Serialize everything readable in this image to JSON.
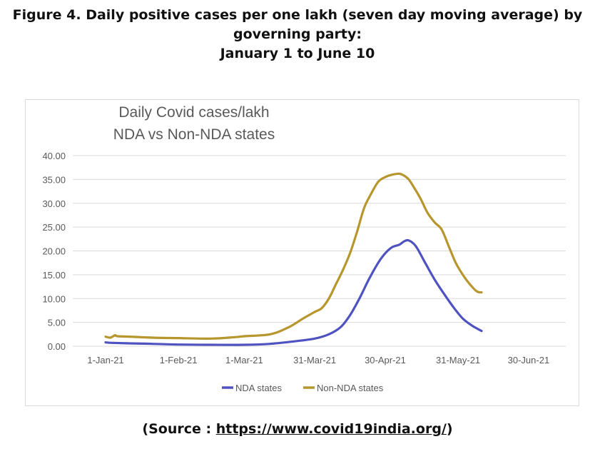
{
  "figure": {
    "title_lines": [
      "Figure 4.  Daily positive cases per one lakh (seven day moving average) by",
      "governing party:",
      "January 1 to June 10"
    ],
    "source_prefix": "(Source : ",
    "source_link": "https://www.covid19india.org/",
    "source_suffix": ")"
  },
  "chart_data": {
    "type": "line",
    "title": "Daily Covid cases/lakh",
    "subtitle": "NDA vs Non-NDA states",
    "xlabel": "",
    "ylabel": "",
    "ylim": [
      0,
      40
    ],
    "yticks": [
      0,
      5,
      10,
      15,
      20,
      25,
      30,
      35,
      40
    ],
    "ytick_labels": [
      "0.00",
      "5.00",
      "10.00",
      "15.00",
      "20.00",
      "25.00",
      "30.00",
      "35.00",
      "40.00"
    ],
    "x_domain_days": [
      0,
      180
    ],
    "xticks_days": [
      0,
      31,
      59,
      89,
      119,
      150,
      180
    ],
    "xtick_labels": [
      "1-Jan-21",
      "1-Feb-21",
      "1-Mar-21",
      "31-Mar-21",
      "30-Apr-21",
      "31-May-21",
      "30-Jun-21"
    ],
    "x_note": "x values are days since 1-Jan-21",
    "grid": true,
    "legend_position": "bottom",
    "series": [
      {
        "name": "NDA states",
        "color": "#4f53c0",
        "x": [
          0,
          3,
          10,
          20,
          31,
          45,
          59,
          70,
          80,
          89,
          95,
          100,
          104,
          108,
          112,
          116,
          119,
          122,
          125,
          127,
          129,
          132,
          136,
          140,
          144,
          148,
          152,
          156,
          160
        ],
        "y": [
          0.8,
          0.7,
          0.6,
          0.5,
          0.35,
          0.3,
          0.3,
          0.5,
          1.0,
          1.6,
          2.5,
          4.0,
          6.5,
          10.0,
          14.0,
          17.5,
          19.5,
          20.8,
          21.3,
          22.0,
          22.2,
          21.0,
          17.5,
          14.0,
          11.0,
          8.2,
          5.8,
          4.3,
          3.2
        ]
      },
      {
        "name": "Non-NDA states",
        "color": "#b8962e",
        "x": [
          0,
          2,
          4,
          5,
          10,
          20,
          31,
          45,
          55,
          59,
          70,
          78,
          84,
          89,
          92,
          95,
          98,
          101,
          104,
          107,
          110,
          113,
          116,
          119,
          122,
          125,
          127,
          129,
          131,
          134,
          137,
          140,
          143,
          146,
          149,
          152,
          155,
          158,
          160
        ],
        "y": [
          2.0,
          1.8,
          2.3,
          2.1,
          2.0,
          1.8,
          1.7,
          1.6,
          1.9,
          2.1,
          2.5,
          4.0,
          5.8,
          7.2,
          8.0,
          10.0,
          13.0,
          16.0,
          19.5,
          24.0,
          29.0,
          32.0,
          34.5,
          35.5,
          36.0,
          36.2,
          35.8,
          35.0,
          33.5,
          31.0,
          28.0,
          26.0,
          24.5,
          21.0,
          17.5,
          15.0,
          13.0,
          11.5,
          11.3
        ]
      }
    ]
  }
}
